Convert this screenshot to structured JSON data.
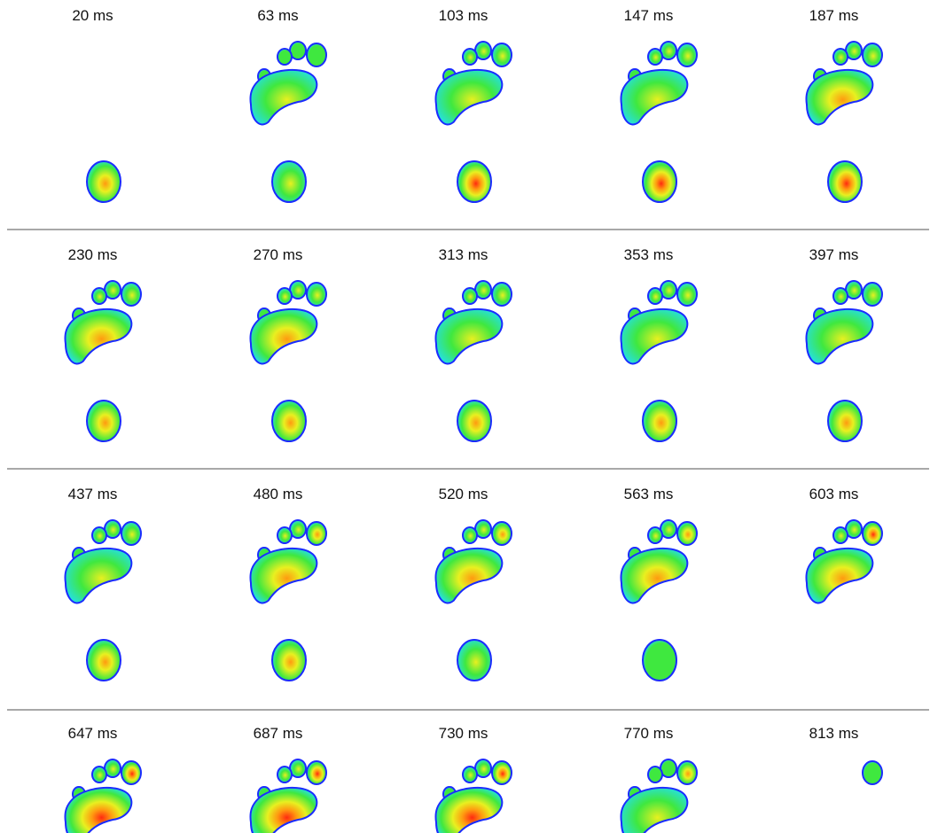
{
  "frames": [
    {
      "label": "20 ms",
      "toe": 0.0,
      "fore": 0.0,
      "heel": 0.75,
      "toe2": 0.0
    },
    {
      "label": "63 ms",
      "toe": 0.35,
      "fore": 0.55,
      "heel": 0.6,
      "toe2": 0.2
    },
    {
      "label": "103 ms",
      "toe": 0.5,
      "fore": 0.6,
      "heel": 0.85,
      "toe2": 0.45
    },
    {
      "label": "147 ms",
      "toe": 0.55,
      "fore": 0.6,
      "heel": 0.95,
      "toe2": 0.5
    },
    {
      "label": "187 ms",
      "toe": 0.55,
      "fore": 0.65,
      "heel": 0.9,
      "toe2": 0.5
    },
    {
      "label": "230 ms",
      "toe": 0.55,
      "fore": 0.65,
      "heel": 0.75,
      "toe2": 0.5
    },
    {
      "label": "270 ms",
      "toe": 0.55,
      "fore": 0.65,
      "heel": 0.7,
      "toe2": 0.5
    },
    {
      "label": "313 ms",
      "toe": 0.55,
      "fore": 0.6,
      "heel": 0.7,
      "toe2": 0.5
    },
    {
      "label": "353 ms",
      "toe": 0.55,
      "fore": 0.6,
      "heel": 0.7,
      "toe2": 0.5
    },
    {
      "label": "397 ms",
      "toe": 0.55,
      "fore": 0.6,
      "heel": 0.7,
      "toe2": 0.5
    },
    {
      "label": "437 ms",
      "toe": 0.6,
      "fore": 0.6,
      "heel": 0.8,
      "toe2": 0.5
    },
    {
      "label": "480 ms",
      "toe": 0.65,
      "fore": 0.65,
      "heel": 0.7,
      "toe2": 0.5
    },
    {
      "label": "520 ms",
      "toe": 0.7,
      "fore": 0.7,
      "heel": 0.55,
      "toe2": 0.5
    },
    {
      "label": "563 ms",
      "toe": 0.8,
      "fore": 0.75,
      "heel": 0.4,
      "toe2": 0.5
    },
    {
      "label": "603 ms",
      "toe": 0.85,
      "fore": 0.8,
      "heel": 0.0,
      "toe2": 0.5
    },
    {
      "label": "647 ms",
      "toe": 0.9,
      "fore": 0.85,
      "heel": 0.0,
      "toe2": 0.5
    },
    {
      "label": "687 ms",
      "toe": 0.95,
      "fore": 0.9,
      "heel": 0.0,
      "toe2": 0.5
    },
    {
      "label": "730 ms",
      "toe": 0.85,
      "fore": 0.85,
      "heel": 0.0,
      "toe2": 0.45
    },
    {
      "label": "770 ms",
      "toe": 0.7,
      "fore": 0.6,
      "heel": 0.0,
      "toe2": 0.35
    },
    {
      "label": "813 ms",
      "toe": 0.35,
      "fore": 0.0,
      "heel": 0.0,
      "toe2": 0.0
    }
  ],
  "colors": {
    "outline": "#1a2cff",
    "cyan": "#27e0d6",
    "green": "#3fe83f",
    "yellow": "#e8f020",
    "orange": "#ff9a10",
    "red": "#ff2a10",
    "divider": "#a8a8a8"
  }
}
